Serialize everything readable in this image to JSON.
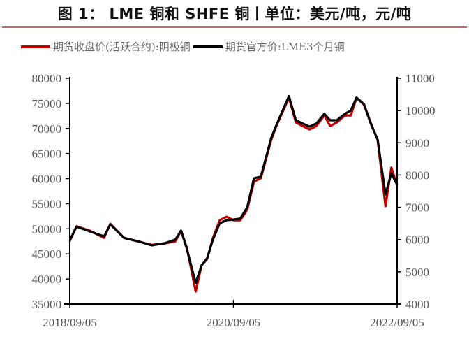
{
  "title": "图 1： LME 铜和 SHFE 铜丨单位：美元/吨，元/吨",
  "chart_data": {
    "type": "line",
    "title": "图 1： LME 铜和 SHFE 铜丨单位：美元/吨，元/吨",
    "legend_position": "top",
    "grid": false,
    "x_ticks": [
      "2018/09/05",
      "2020/09/05",
      "2022/09/05"
    ],
    "x_range": [
      "2018-09-05",
      "2022-09-05"
    ],
    "y_left": {
      "range": [
        35000,
        80000
      ],
      "ticks": [
        35000,
        40000,
        45000,
        50000,
        55000,
        60000,
        65000,
        70000,
        75000,
        80000
      ]
    },
    "y_right": {
      "range": [
        4000,
        11000
      ],
      "ticks": [
        4000,
        5000,
        6000,
        7000,
        8000,
        9000,
        10000,
        11000
      ]
    },
    "x": [
      "2018-09-05",
      "2018-10-05",
      "2018-12-05",
      "2019-02-05",
      "2019-03-05",
      "2019-05-05",
      "2019-07-05",
      "2019-09-05",
      "2019-11-05",
      "2019-12-20",
      "2020-01-15",
      "2020-02-10",
      "2020-03-20",
      "2020-04-15",
      "2020-05-10",
      "2020-06-05",
      "2020-07-05",
      "2020-08-05",
      "2020-09-05",
      "2020-10-05",
      "2020-11-05",
      "2020-12-05",
      "2021-01-05",
      "2021-02-20",
      "2021-03-15",
      "2021-05-10",
      "2021-06-10",
      "2021-07-10",
      "2021-08-10",
      "2021-09-10",
      "2021-10-15",
      "2021-11-10",
      "2021-12-10",
      "2022-01-15",
      "2022-02-10",
      "2022-03-08",
      "2022-04-10",
      "2022-05-10",
      "2022-06-10",
      "2022-07-15",
      "2022-08-10",
      "2022-09-05"
    ],
    "series": [
      {
        "name": "期货收盘价(活跃合约):阴极铜",
        "axis": "left",
        "color": "#c00000",
        "values": [
          47540,
          50500,
          49600,
          48200,
          51000,
          48200,
          47500,
          46800,
          47100,
          47500,
          49600,
          46150,
          37500,
          42700,
          44000,
          48200,
          51700,
          52400,
          51700,
          51700,
          53800,
          59400,
          60100,
          67700,
          70500,
          76100,
          71200,
          70500,
          69800,
          70500,
          72600,
          70500,
          71200,
          72600,
          72600,
          76100,
          74700,
          71200,
          67700,
          54500,
          62200,
          58700
        ]
      },
      {
        "name": "期货官方价:LME3个月铜",
        "axis": "right",
        "color": "#000000",
        "values": [
          5980,
          6400,
          6250,
          6100,
          6470,
          6050,
          5950,
          5820,
          5890,
          6000,
          6280,
          5700,
          4650,
          5200,
          5420,
          6000,
          6500,
          6600,
          6620,
          6650,
          7000,
          7900,
          7950,
          9150,
          9550,
          10450,
          9700,
          9600,
          9500,
          9600,
          9900,
          9700,
          9700,
          9900,
          10000,
          10400,
          10200,
          9600,
          9100,
          7400,
          8050,
          7700
        ]
      }
    ]
  }
}
